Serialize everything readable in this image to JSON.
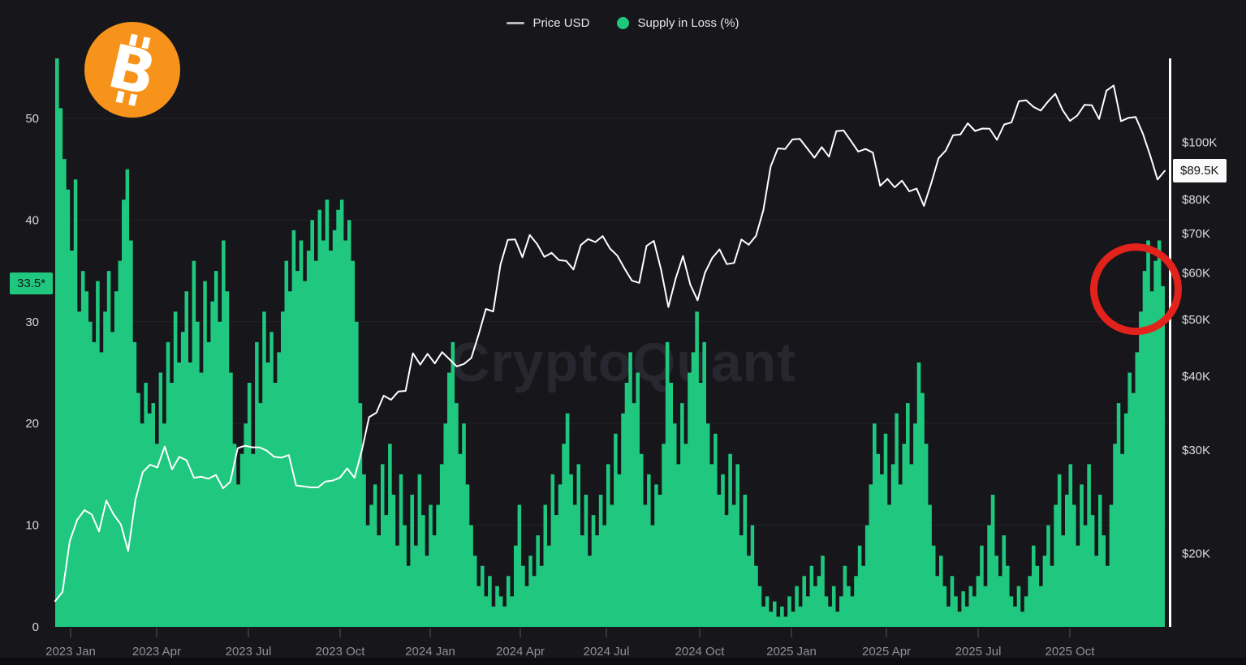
{
  "legend": {
    "price_label": "Price USD",
    "supply_label": "Supply in Loss (%)"
  },
  "watermark": {
    "text": "CryptoQuant"
  },
  "badges": {
    "supply_current_label": "33.5*",
    "supply_current_value": 33.5,
    "price_current_label": "$89.5K",
    "price_current_value_kusd": 89.5
  },
  "branding": {
    "symbol": "B",
    "logo_color": "#f7931a"
  },
  "colors": {
    "background": "#16161b",
    "supply_green": "#1fc87e",
    "price_white": "#ffffff",
    "annotation_red": "#e4221c",
    "grid": "rgba(255,255,255,0.055)",
    "axis_label_left": "#d7d8db",
    "axis_label_right": "#dddde1",
    "axis_label_x": "#8f9096",
    "right_axis_line": "#ffffff",
    "tick_mark": "#55565e"
  },
  "axes": {
    "left": {
      "tick_labels": [
        "0",
        "10",
        "20",
        "30",
        "40",
        "50"
      ],
      "tick_values": [
        0,
        10,
        20,
        30,
        40,
        50
      ]
    },
    "right": {
      "ticks": [
        {
          "label": "$100K",
          "value_kusd": 100
        },
        {
          "label": "$80K",
          "value_kusd": 80
        },
        {
          "label": "$70K",
          "value_kusd": 70
        },
        {
          "label": "$60K",
          "value_kusd": 60
        },
        {
          "label": "$50K",
          "value_kusd": 50
        },
        {
          "label": "$40K",
          "value_kusd": 40
        },
        {
          "label": "$30K",
          "value_kusd": 30
        },
        {
          "label": "$20K",
          "value_kusd": 20
        }
      ]
    },
    "x": {
      "ticks": [
        {
          "label": "2023 Jan",
          "f": 0.0139
        },
        {
          "label": "2023 Apr",
          "f": 0.0914
        },
        {
          "label": "2023 Jul",
          "f": 0.1741
        },
        {
          "label": "2023 Oct",
          "f": 0.2568
        },
        {
          "label": "2024 Jan",
          "f": 0.338
        },
        {
          "label": "2024 Apr",
          "f": 0.4192
        },
        {
          "label": "2024 Jul",
          "f": 0.4967
        },
        {
          "label": "2024 Oct",
          "f": 0.5808
        },
        {
          "label": "2025 Jan",
          "f": 0.6635
        },
        {
          "label": "2025 Apr",
          "f": 0.7491
        },
        {
          "label": "2025 Jul",
          "f": 0.8318
        },
        {
          "label": "2025 Oct",
          "f": 0.9144
        }
      ]
    }
  },
  "chart_data": {
    "type": "mixed",
    "x_range": [
      "2023 Jan",
      "2025 Nov"
    ],
    "grid": "horizontal-only",
    "legend_position": "top-center",
    "left_axis": {
      "scale": "linear",
      "domain": [
        0,
        55.9
      ],
      "label": "Supply in Loss (%)"
    },
    "right_axis": {
      "scale": "log",
      "domain_kusd": [
        15.0,
        139.0
      ],
      "label": "Price USD"
    },
    "annotations": [
      {
        "type": "circle",
        "color": "#e4221c",
        "target": "late-2025 supply-in-loss spike",
        "x_f": 0.974,
        "supply_level": 34
      },
      {
        "type": "value-flag",
        "axis": "left",
        "text": "33.5*",
        "value": 33.5
      },
      {
        "type": "value-flag",
        "axis": "right",
        "text": "$89.5K",
        "value_kusd": 89.5
      }
    ],
    "series": [
      {
        "name": "Price USD",
        "type": "line",
        "axis": "right",
        "unit": "thousand USD",
        "color": "#ffffff",
        "sampling": "weekly, evenly spaced across x_range",
        "values": [
          16.6,
          17.2,
          21.0,
          22.8,
          23.7,
          23.3,
          21.8,
          24.6,
          23.3,
          22.4,
          20.2,
          24.7,
          27.5,
          28.3,
          28.0,
          30.4,
          27.8,
          29.2,
          28.8,
          26.9,
          27.0,
          26.8,
          27.2,
          25.8,
          26.5,
          30.2,
          30.5,
          30.3,
          30.3,
          29.9,
          29.2,
          29.1,
          29.4,
          26.1,
          26.0,
          25.9,
          25.9,
          26.5,
          26.6,
          26.9,
          27.9,
          26.9,
          29.9,
          34.1,
          34.7,
          37.1,
          36.5,
          37.7,
          37.8,
          43.8,
          41.9,
          43.7,
          42.1,
          44.0,
          42.8,
          41.6,
          42.0,
          43.0,
          47.1,
          52.1,
          51.6,
          62.0,
          68.3,
          68.4,
          63.8,
          69.6,
          67.2,
          63.9,
          64.9,
          63.1,
          62.9,
          60.8,
          66.9,
          68.5,
          67.7,
          69.3,
          66.0,
          64.2,
          61.0,
          58.2,
          57.7,
          66.7,
          68.0,
          60.7,
          52.5,
          58.7,
          64.1,
          57.3,
          53.9,
          60.0,
          63.6,
          65.8,
          62.1,
          62.4,
          68.4,
          67.0,
          69.4,
          76.7,
          91.0,
          97.7,
          97.5,
          101.2,
          101.4,
          97.8,
          94.2,
          98.2,
          94.6,
          104.5,
          104.8,
          100.6,
          96.5,
          97.5,
          96.1,
          84.4,
          86.7,
          83.9,
          86.1,
          82.6,
          83.5,
          78.0,
          85.2,
          94.0,
          96.9,
          102.9,
          103.2,
          107.8,
          104.6,
          105.6,
          105.5,
          101.0,
          107.3,
          108.2,
          117.5,
          118.0,
          115.0,
          113.3,
          117.4,
          121.0,
          113.5,
          108.8,
          111.1,
          115.9,
          115.7,
          109.6,
          122.5,
          125.0,
          108.7,
          110.1,
          110.5,
          103.5,
          95.0,
          86.5,
          89.5
        ]
      },
      {
        "name": "Supply in Loss (%)",
        "type": "area",
        "axis": "left",
        "unit": "%",
        "color": "#1fc87e",
        "sampling": "~3.5-day steps, evenly spaced across x_range",
        "values": [
          55.9,
          51,
          46,
          43,
          37,
          44,
          31,
          35,
          33,
          30,
          28,
          34,
          27,
          31,
          35,
          29,
          33,
          36,
          42,
          45,
          38,
          28,
          23,
          20,
          24,
          21,
          22,
          18,
          25,
          20,
          28,
          24,
          31,
          26,
          29,
          33,
          26,
          36,
          30,
          25,
          34,
          28,
          32,
          35,
          30,
          38,
          33,
          25,
          18,
          14,
          17,
          20,
          24,
          17,
          28,
          22,
          31,
          26,
          29,
          24,
          27,
          31,
          36,
          33,
          39,
          35,
          38,
          34,
          37,
          40,
          36,
          41,
          38,
          42,
          37,
          39,
          41,
          42,
          38,
          40,
          36,
          30,
          22,
          15,
          10,
          12,
          14,
          9,
          16,
          11,
          18,
          13,
          8,
          15,
          10,
          6,
          13,
          8,
          15,
          11,
          7,
          12,
          9,
          12,
          16,
          20,
          25,
          28,
          22,
          17,
          20,
          14,
          10,
          7,
          4,
          6,
          3,
          5,
          2,
          4,
          3,
          2,
          5,
          3,
          8,
          12,
          6,
          4,
          7,
          5,
          9,
          6,
          12,
          8,
          15,
          11,
          14,
          18,
          21,
          15,
          12,
          16,
          9,
          13,
          7,
          11,
          9,
          13,
          10,
          16,
          12,
          19,
          15,
          21,
          24,
          27,
          22,
          25,
          17,
          12,
          15,
          10,
          14,
          13,
          18,
          28,
          24,
          20,
          16,
          22,
          18,
          25,
          27,
          31,
          24,
          28,
          20,
          16,
          19,
          13,
          15,
          11,
          17,
          12,
          16,
          9,
          13,
          7,
          10,
          6,
          4,
          2,
          3,
          1.5,
          2.5,
          1,
          2,
          1,
          3,
          1.5,
          4,
          2,
          5,
          3,
          6,
          4,
          5,
          7,
          3,
          2,
          4,
          1.5,
          3,
          6,
          4,
          3,
          5,
          8,
          6,
          10,
          14,
          20,
          17,
          15,
          19,
          12,
          16,
          21,
          14,
          18,
          22,
          16,
          20,
          26,
          23,
          18,
          12,
          8,
          5,
          7,
          4,
          2,
          5,
          3,
          1.5,
          3.5,
          2,
          4,
          3,
          5,
          8,
          4,
          10,
          13,
          7,
          5,
          9,
          6,
          3,
          2,
          4,
          1.5,
          3,
          5,
          8,
          6,
          4,
          7,
          10,
          6,
          12,
          15,
          9,
          13,
          16,
          12,
          8,
          14,
          10,
          16,
          11,
          7,
          13,
          9,
          6,
          12,
          18,
          22,
          17,
          21,
          25,
          23,
          27,
          31,
          35,
          38,
          33,
          36,
          38,
          33.5
        ]
      }
    ]
  }
}
